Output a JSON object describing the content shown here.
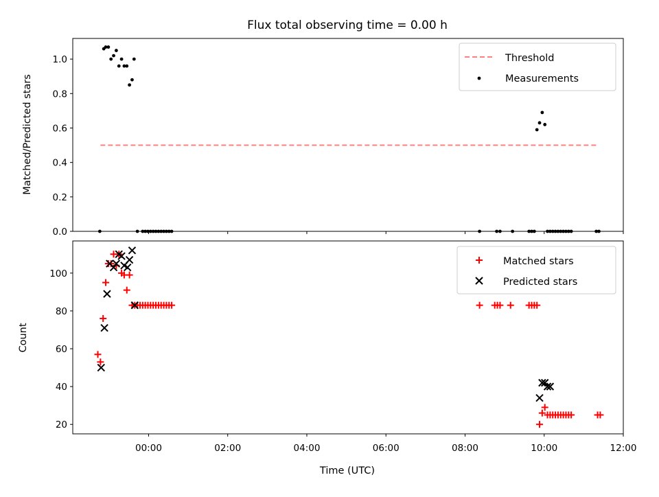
{
  "chart_data": [
    {
      "type": "scatter",
      "title": "Flux total observing time = 0.00 h",
      "xlabel": "",
      "ylabel": "Matched/Predicted stars",
      "xlim": [
        "22:05",
        "12:00"
      ],
      "ylim": [
        0,
        1.12
      ],
      "yticks": [
        "0.0",
        "0.2",
        "0.4",
        "0.6",
        "0.8",
        "1.0"
      ],
      "grid": false,
      "legend_position": "top-right",
      "series": [
        {
          "name": "Threshold",
          "style": "dashed-line",
          "color": "#ff7f7f",
          "x": [
            "22:47",
            "11:22"
          ],
          "y": [
            0.5,
            0.5
          ]
        },
        {
          "name": "Measurements",
          "style": "dot",
          "color": "#000000",
          "x": [
            "22:46",
            "22:52",
            "22:55",
            "22:59",
            "23:03",
            "23:07",
            "23:11",
            "23:15",
            "23:19",
            "23:23",
            "23:27",
            "23:31",
            "23:35",
            "23:38",
            "23:43",
            "23:51",
            "23:55",
            "23:59",
            "00:03",
            "00:07",
            "00:11",
            "00:15",
            "00:19",
            "00:23",
            "00:27",
            "00:31",
            "00:35",
            "08:22",
            "08:48",
            "08:53",
            "09:12",
            "09:37",
            "09:41",
            "09:45",
            "09:49",
            "09:53",
            "09:57",
            "10:01",
            "10:05",
            "10:09",
            "10:13",
            "10:17",
            "10:21",
            "10:25",
            "10:29",
            "10:33",
            "10:37",
            "10:41",
            "11:19",
            "11:23"
          ],
          "y": [
            0.0,
            1.06,
            1.07,
            1.07,
            1.0,
            1.02,
            1.05,
            0.96,
            1.0,
            0.96,
            0.96,
            0.85,
            0.88,
            1.0,
            0.0,
            0.0,
            0.0,
            0.0,
            0.0,
            0.0,
            0.0,
            0.0,
            0.0,
            0.0,
            0.0,
            0.0,
            0.0,
            0.0,
            0.0,
            0.0,
            0.0,
            0.0,
            0.0,
            0.0,
            0.59,
            0.63,
            0.69,
            0.62,
            0.0,
            0.0,
            0.0,
            0.0,
            0.0,
            0.0,
            0.0,
            0.0,
            0.0,
            0.0,
            0.0,
            0.0
          ]
        }
      ]
    },
    {
      "type": "scatter",
      "title": "",
      "xlabel": "Time (UTC)",
      "ylabel": "Count",
      "xlim": [
        "22:05",
        "12:00"
      ],
      "xticks": [
        "00:00",
        "02:00",
        "04:00",
        "06:00",
        "08:00",
        "10:00",
        "12:00"
      ],
      "ylim": [
        15,
        117
      ],
      "yticks": [
        "20",
        "40",
        "60",
        "80",
        "100"
      ],
      "grid": false,
      "legend_position": "top-right",
      "series": [
        {
          "name": "Matched stars",
          "style": "plus",
          "color": "#ff0000",
          "x": [
            "22:43",
            "22:47",
            "22:51",
            "22:55",
            "22:59",
            "23:03",
            "23:07",
            "23:11",
            "23:15",
            "23:19",
            "23:23",
            "23:27",
            "23:31",
            "23:35",
            "23:39",
            "23:43",
            "23:47",
            "23:51",
            "23:55",
            "23:59",
            "00:03",
            "00:07",
            "00:11",
            "00:15",
            "00:19",
            "00:23",
            "00:27",
            "00:31",
            "00:35",
            "08:22",
            "08:45",
            "08:49",
            "08:53",
            "09:09",
            "09:37",
            "09:41",
            "09:45",
            "09:49",
            "09:53",
            "09:57",
            "10:01",
            "10:05",
            "10:09",
            "10:13",
            "10:17",
            "10:21",
            "10:25",
            "10:29",
            "10:33",
            "10:37",
            "10:41",
            "11:21",
            "11:25"
          ],
          "y": [
            57,
            53,
            76,
            95,
            105,
            105,
            110,
            104,
            110,
            100,
            99,
            91,
            99,
            83,
            83,
            83,
            83,
            83,
            83,
            83,
            83,
            83,
            83,
            83,
            83,
            83,
            83,
            83,
            83,
            83,
            83,
            83,
            83,
            83,
            83,
            83,
            83,
            83,
            20,
            26,
            29,
            25,
            25,
            25,
            25,
            25,
            25,
            25,
            25,
            25,
            25,
            25,
            25
          ]
        },
        {
          "name": "Predicted stars",
          "style": "x",
          "color": "#000000",
          "x": [
            "22:48",
            "22:53",
            "22:57",
            "23:01",
            "23:07",
            "23:11",
            "23:15",
            "23:19",
            "23:23",
            "23:28",
            "23:31",
            "23:35",
            "23:39",
            "09:53",
            "09:57",
            "10:01",
            "10:05",
            "10:09"
          ],
          "y": [
            50,
            71,
            89,
            105,
            103,
            105,
            110,
            109,
            104,
            103,
            107,
            112,
            83,
            34,
            42,
            42,
            40,
            40
          ]
        }
      ]
    }
  ]
}
